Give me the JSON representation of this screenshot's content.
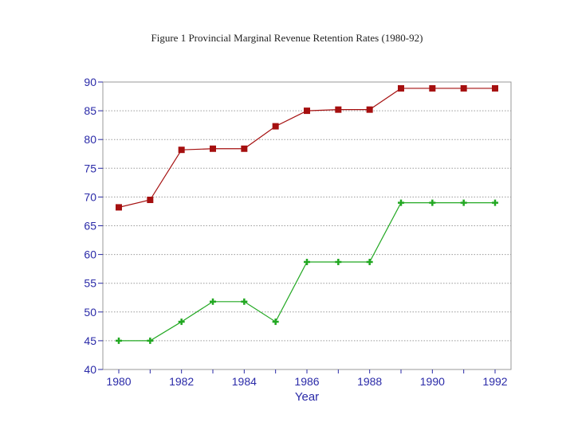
{
  "chart_data": {
    "type": "line",
    "title": "Figure 1   Provincial Marginal Revenue Retention Rates (1980-92)",
    "xlabel": "Year",
    "ylabel": "",
    "xlim": [
      1980,
      1992
    ],
    "ylim": [
      40,
      90
    ],
    "x": [
      1980,
      1981,
      1982,
      1983,
      1984,
      1985,
      1986,
      1987,
      1988,
      1989,
      1990,
      1991,
      1992
    ],
    "x_tick_labels": [
      "1980",
      "1982",
      "1984",
      "1986",
      "1988",
      "1990",
      "1992"
    ],
    "y_tick_labels": [
      "40",
      "45",
      "50",
      "55",
      "60",
      "65",
      "70",
      "75",
      "80",
      "85",
      "90"
    ],
    "grid": "horizontal dotted",
    "series": [
      {
        "marker": "square",
        "color": "#a50f0f",
        "values": [
          68.2,
          69.5,
          78.2,
          78.4,
          78.4,
          82.3,
          85.0,
          85.2,
          85.2,
          88.9,
          88.9,
          88.9,
          88.9
        ]
      },
      {
        "marker": "plus",
        "color": "#22a822",
        "values": [
          45.0,
          45.0,
          48.3,
          51.8,
          51.8,
          48.3,
          58.7,
          58.7,
          58.7,
          69.0,
          69.0,
          69.0,
          69.0
        ]
      }
    ],
    "axis_color": "#2a2aa8"
  }
}
